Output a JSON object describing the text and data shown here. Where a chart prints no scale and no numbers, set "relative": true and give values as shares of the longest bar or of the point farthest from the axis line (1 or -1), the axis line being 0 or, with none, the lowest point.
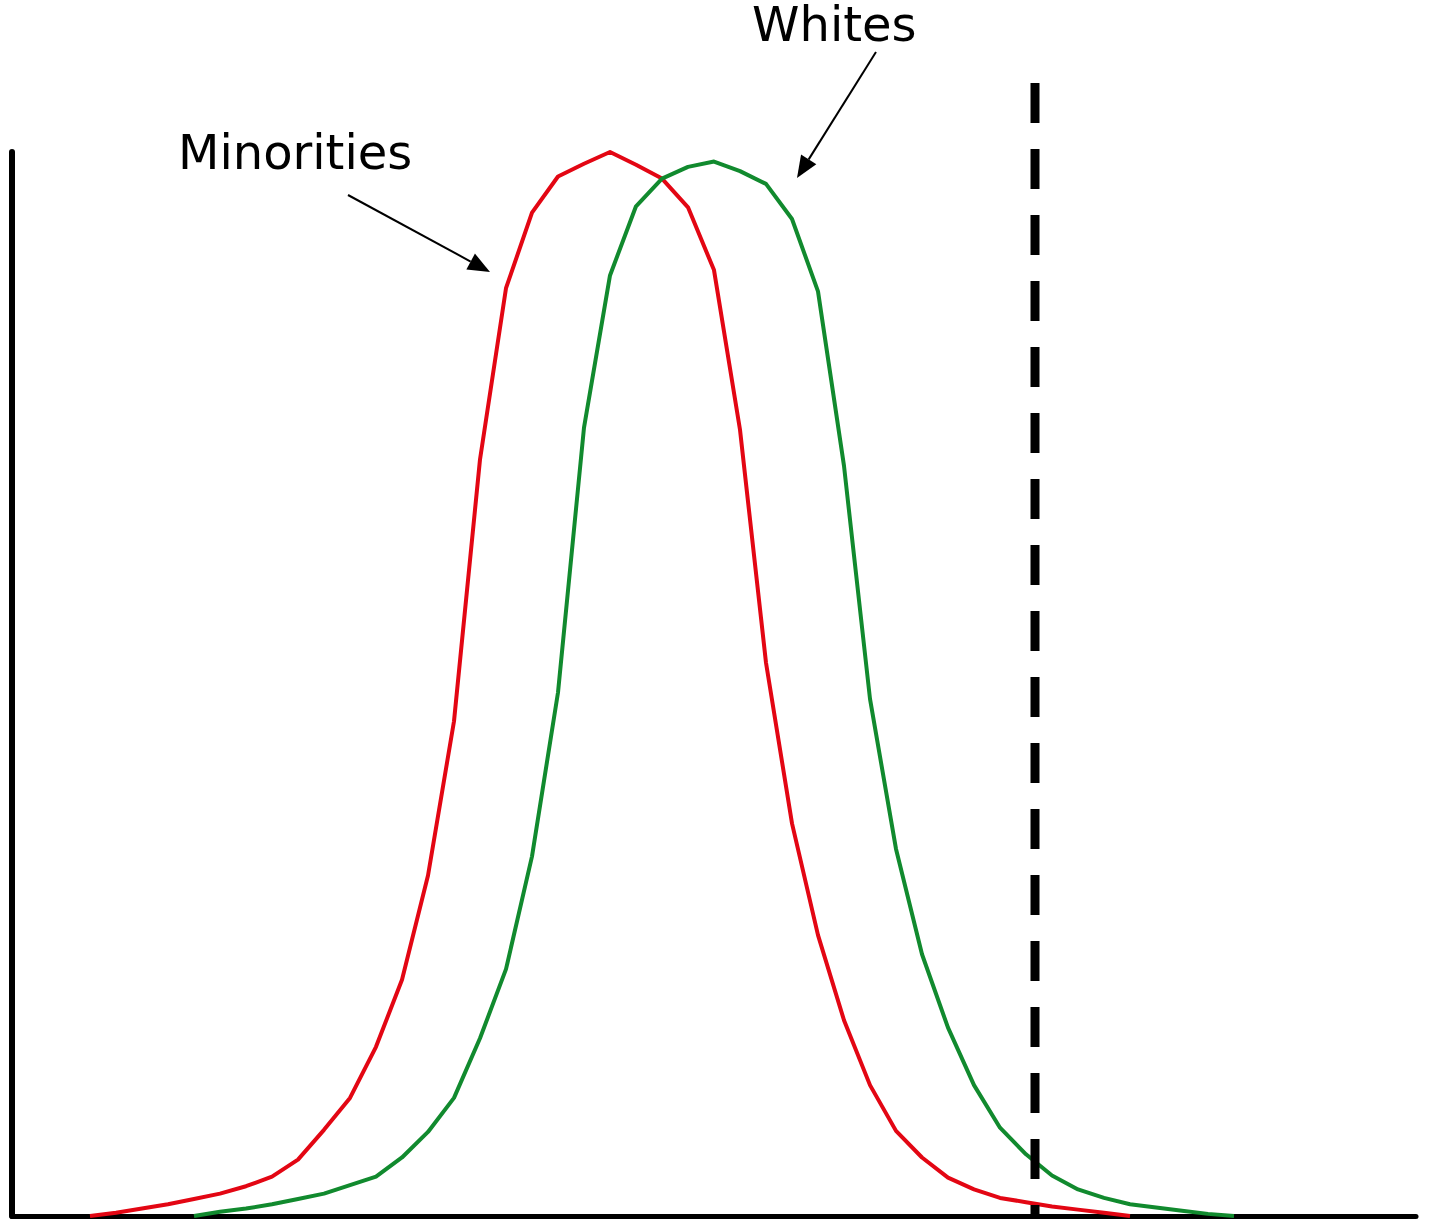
{
  "chart_data": {
    "type": "line",
    "relative": true,
    "marker": "none",
    "line_style": "solid",
    "categories": [
      null,
      null,
      null,
      null,
      null,
      null,
      null,
      null,
      null,
      null,
      null,
      null,
      null,
      null,
      null,
      null,
      null,
      null,
      null,
      null,
      null,
      null,
      null,
      null,
      null,
      null,
      null,
      null,
      null,
      null,
      null,
      null,
      null,
      null,
      null,
      null,
      null,
      null,
      null,
      null,
      null,
      null,
      null,
      null,
      null,
      null,
      null,
      null,
      null,
      null,
      null,
      null,
      null,
      null,
      null
    ],
    "series": [
      {
        "color": "#e30613",
        "values": [
          null,
          null,
          null,
          0,
          0.003,
          0.007,
          0.011,
          0.016,
          0.021,
          0.028,
          0.037,
          0.053,
          0.081,
          0.111,
          0.159,
          0.222,
          0.32,
          0.465,
          0.711,
          0.872,
          0.943,
          0.977,
          0.989,
          1,
          0.988,
          0.975,
          0.948,
          0.889,
          0.739,
          0.52,
          0.369,
          0.264,
          0.184,
          0.123,
          0.08,
          0.055,
          0.036,
          0.025,
          0.017,
          0.013,
          0.009,
          0.006,
          0.003,
          0,
          null,
          null,
          null,
          null,
          null,
          null,
          null,
          null,
          null,
          null,
          null
        ]
      },
      {
        "color": "#118a2e",
        "values": [
          null,
          null,
          null,
          null,
          null,
          null,
          null,
          0,
          0.004,
          0.007,
          0.011,
          0.016,
          0.021,
          0.029,
          0.037,
          0.055,
          0.079,
          0.111,
          0.167,
          0.232,
          0.338,
          0.492,
          0.741,
          0.884,
          0.949,
          0.975,
          0.986,
          0.991,
          0.982,
          0.97,
          0.937,
          0.869,
          0.705,
          0.486,
          0.345,
          0.246,
          0.177,
          0.123,
          0.083,
          0.058,
          0.038,
          0.025,
          0.017,
          0.011,
          0.008,
          0.005,
          0.002,
          0,
          null,
          null,
          null,
          null,
          null,
          null,
          null
        ]
      }
    ],
    "annotations": [
      "Minorities",
      "Whites"
    ]
  }
}
